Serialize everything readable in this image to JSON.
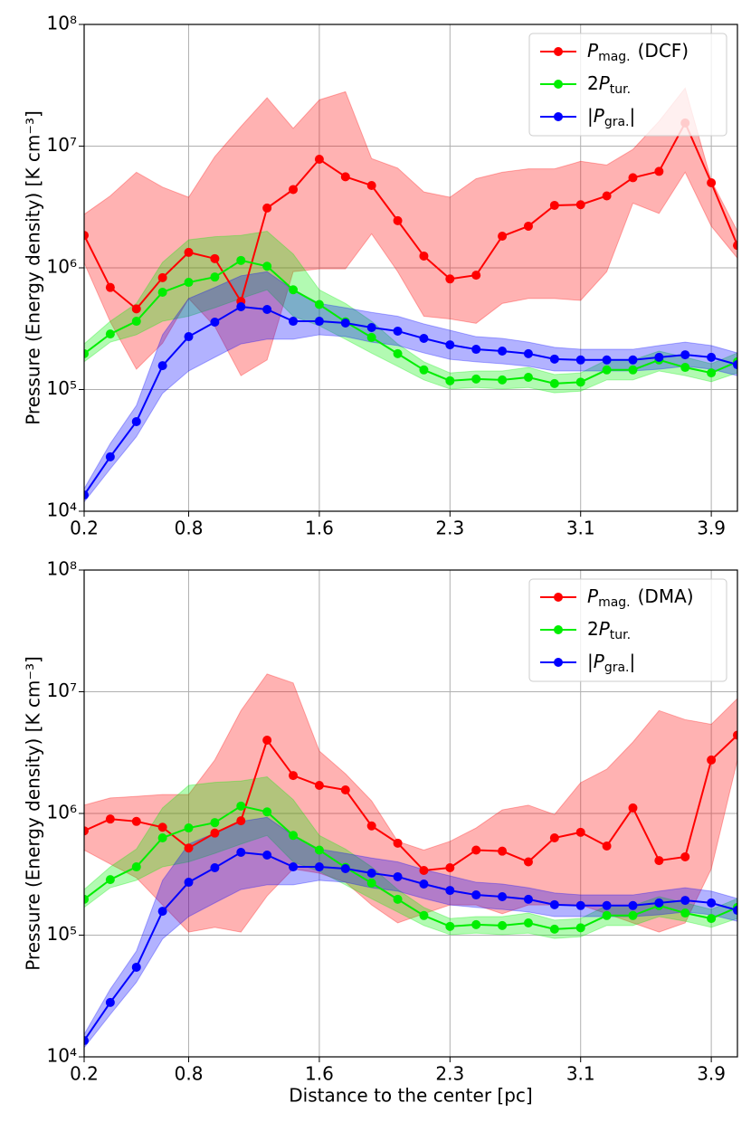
{
  "chart_data": [
    {
      "type": "line",
      "ylabel": "Pressure (Energy density) [K cm⁻³]",
      "log_y": true,
      "grid": true,
      "legend": "upper right",
      "x": [
        0.18,
        0.335,
        0.49,
        0.645,
        0.8,
        0.955,
        1.11,
        1.265,
        1.42,
        1.575,
        1.73,
        1.885,
        2.04,
        2.195,
        2.35,
        2.505,
        2.66,
        2.815,
        2.97,
        3.125,
        3.28,
        3.435,
        3.59,
        3.745,
        3.9,
        4.055
      ],
      "xlim": [
        0.18,
        4.055
      ],
      "xticks": [
        {
          "value": 0.18,
          "label": "0.2"
        },
        0.8,
        {
          "value": 1.575,
          "label": "1.6"
        },
        {
          "value": 2.35,
          "label": "2.3"
        },
        {
          "value": 3.125,
          "label": "3.1"
        },
        3.9
      ],
      "ylim": [
        10000,
        100000000
      ],
      "yticks": [
        {
          "value": 10000,
          "label": "10⁴"
        },
        {
          "value": 100000,
          "label": "10⁵"
        },
        {
          "value": 1000000,
          "label": "10⁶"
        },
        {
          "value": 10000000,
          "label": "10⁷"
        },
        {
          "value": 100000000,
          "label": "10⁸"
        }
      ],
      "series": [
        {
          "name": "P",
          "subscript": "mag.",
          "suffix": "(DCF)",
          "color": "#ff0000",
          "values": [
            1850000,
            690000,
            460000,
            830000,
            1340000,
            1190000,
            530000,
            3100000,
            4400000,
            7800000,
            5600000,
            4750000,
            2440000,
            1250000,
            810000,
            870000,
            1820000,
            2200000,
            3260000,
            3300000,
            3900000,
            5500000,
            6200000,
            15500000,
            5000000,
            1530000
          ],
          "upper": [
            2750000,
            3900000,
            6100000,
            4600000,
            3800000,
            8200000,
            14500000,
            25000000,
            14000000,
            24000000,
            28000000,
            7900000,
            6600000,
            4200000,
            3800000,
            5400000,
            6100000,
            6500000,
            6500000,
            7500000,
            7000000,
            9400000,
            16000000,
            30000000,
            5200000,
            2000000
          ],
          "lower": [
            1100000,
            360000,
            147000,
            240000,
            560000,
            330000,
            130000,
            175000,
            930000,
            980000,
            980000,
            1900000,
            930000,
            400000,
            380000,
            350000,
            510000,
            560000,
            560000,
            540000,
            930000,
            3400000,
            2800000,
            6100000,
            2200000,
            1200000
          ]
        },
        {
          "name": "P",
          "prefix": "2",
          "subscript": "tur.",
          "color": "#00ee00",
          "values": [
            197000,
            286000,
            364000,
            630000,
            760000,
            840000,
            1150000,
            1030000,
            660000,
            500000,
            360000,
            268000,
            197000,
            145000,
            118000,
            122000,
            120000,
            126000,
            112000,
            115000,
            145000,
            145000,
            175000,
            152000,
            137000,
            169000
          ],
          "upper": [
            237000,
            364000,
            510000,
            1110000,
            1700000,
            1800000,
            1850000,
            2000000,
            1300000,
            660000,
            510000,
            364000,
            237000,
            169000,
            137000,
            142000,
            142000,
            152000,
            133000,
            137000,
            175000,
            175000,
            207000,
            184000,
            163000,
            200000
          ],
          "lower": [
            169000,
            245000,
            282000,
            364000,
            400000,
            470000,
            560000,
            660000,
            400000,
            334000,
            259000,
            199000,
            155000,
            120000,
            101000,
            104000,
            101000,
            104000,
            94000,
            97000,
            120000,
            120000,
            142000,
            130000,
            116000,
            137000
          ]
        },
        {
          "name": "P",
          "prefix": "|",
          "subscript": "gra.",
          "suffix": "|",
          "color": "#0000ff",
          "values": [
            13600,
            28000,
            54500,
            157000,
            272000,
            358000,
            479000,
            455000,
            364000,
            364000,
            352000,
            323000,
            302000,
            263000,
            233000,
            214000,
            207000,
            197000,
            178000,
            175000,
            175000,
            175000,
            184000,
            193000,
            184000,
            160000
          ],
          "upper": [
            15300,
            36000,
            74000,
            282000,
            560000,
            690000,
            860000,
            930000,
            660000,
            510000,
            470000,
            430000,
            400000,
            346000,
            307000,
            272000,
            263000,
            245000,
            222000,
            214000,
            214000,
            214000,
            230000,
            245000,
            230000,
            200000
          ],
          "lower": [
            11900,
            22300,
            41000,
            93000,
            142000,
            184000,
            237000,
            259000,
            259000,
            282000,
            272000,
            245000,
            230000,
            200000,
            177000,
            169000,
            163000,
            155000,
            142000,
            142000,
            142000,
            142000,
            147000,
            155000,
            147000,
            130000
          ]
        }
      ]
    },
    {
      "type": "line",
      "ylabel": "Pressure (Energy density) [K cm⁻³]",
      "xlabel": "Distance to the center [pc]",
      "log_y": true,
      "grid": true,
      "legend": "upper right",
      "x": [
        0.18,
        0.335,
        0.49,
        0.645,
        0.8,
        0.955,
        1.11,
        1.265,
        1.42,
        1.575,
        1.73,
        1.885,
        2.04,
        2.195,
        2.35,
        2.505,
        2.66,
        2.815,
        2.97,
        3.125,
        3.28,
        3.435,
        3.59,
        3.745,
        3.9,
        4.055
      ],
      "xlim": [
        0.18,
        4.055
      ],
      "xticks": [
        {
          "value": 0.18,
          "label": "0.2"
        },
        0.8,
        {
          "value": 1.575,
          "label": "1.6"
        },
        {
          "value": 2.35,
          "label": "2.3"
        },
        {
          "value": 3.125,
          "label": "3.1"
        },
        3.9
      ],
      "ylim": [
        10000,
        100000000
      ],
      "yticks": [
        {
          "value": 10000,
          "label": "10⁴"
        },
        {
          "value": 100000,
          "label": "10⁵"
        },
        {
          "value": 1000000,
          "label": "10⁶"
        },
        {
          "value": 10000000,
          "label": "10⁷"
        },
        {
          "value": 100000000,
          "label": "10⁸"
        }
      ],
      "series": [
        {
          "name": "P",
          "subscript": "mag.",
          "suffix": "(DMA)",
          "color": "#ff0000",
          "values": [
            720000,
            900000,
            860000,
            770000,
            520000,
            690000,
            870000,
            4000000,
            2050000,
            1700000,
            1560000,
            790000,
            570000,
            340000,
            358000,
            500000,
            490000,
            400000,
            630000,
            700000,
            540000,
            1110000,
            410000,
            440000,
            2750000,
            4400000
          ],
          "upper": [
            1170000,
            1340000,
            1380000,
            1430000,
            1430000,
            2750000,
            7000000,
            14000000,
            11800000,
            3260000,
            2120000,
            1270000,
            590000,
            500000,
            590000,
            760000,
            1070000,
            1170000,
            980000,
            1790000,
            2310000,
            3860000,
            7000000,
            5900000,
            5400000,
            8800000
          ],
          "lower": [
            500000,
            384000,
            296000,
            177000,
            106000,
            116000,
            106000,
            210000,
            350000,
            323000,
            272000,
            177000,
            126000,
            150000,
            177000,
            177000,
            150000,
            177000,
            177000,
            177000,
            150000,
            126000,
            106000,
            126000,
            350000,
            2750000
          ]
        },
        {
          "name": "P",
          "prefix": "2",
          "subscript": "tur.",
          "color": "#00ee00",
          "values": [
            197000,
            286000,
            364000,
            630000,
            760000,
            840000,
            1150000,
            1030000,
            660000,
            500000,
            360000,
            268000,
            197000,
            145000,
            118000,
            122000,
            120000,
            126000,
            112000,
            115000,
            145000,
            145000,
            175000,
            152000,
            137000,
            169000
          ],
          "upper": [
            237000,
            364000,
            510000,
            1110000,
            1700000,
            1800000,
            1850000,
            2000000,
            1300000,
            660000,
            510000,
            364000,
            237000,
            169000,
            137000,
            142000,
            142000,
            152000,
            133000,
            137000,
            175000,
            175000,
            207000,
            184000,
            163000,
            200000
          ],
          "lower": [
            169000,
            245000,
            282000,
            364000,
            400000,
            470000,
            560000,
            660000,
            400000,
            334000,
            259000,
            199000,
            155000,
            120000,
            101000,
            104000,
            101000,
            104000,
            94000,
            97000,
            120000,
            120000,
            142000,
            130000,
            116000,
            137000
          ]
        },
        {
          "name": "P",
          "prefix": "|",
          "subscript": "gra.",
          "suffix": "|",
          "color": "#0000ff",
          "values": [
            13600,
            28000,
            54500,
            157000,
            272000,
            358000,
            479000,
            455000,
            364000,
            364000,
            352000,
            323000,
            302000,
            263000,
            233000,
            214000,
            207000,
            197000,
            178000,
            175000,
            175000,
            175000,
            184000,
            193000,
            184000,
            160000
          ],
          "upper": [
            15300,
            36000,
            74000,
            282000,
            560000,
            690000,
            860000,
            930000,
            660000,
            510000,
            470000,
            430000,
            400000,
            346000,
            307000,
            272000,
            263000,
            245000,
            222000,
            214000,
            214000,
            214000,
            230000,
            245000,
            230000,
            200000
          ],
          "lower": [
            11900,
            22300,
            41000,
            93000,
            142000,
            184000,
            237000,
            259000,
            259000,
            282000,
            272000,
            245000,
            230000,
            200000,
            177000,
            169000,
            163000,
            155000,
            142000,
            142000,
            142000,
            142000,
            147000,
            155000,
            147000,
            130000
          ]
        }
      ]
    }
  ]
}
